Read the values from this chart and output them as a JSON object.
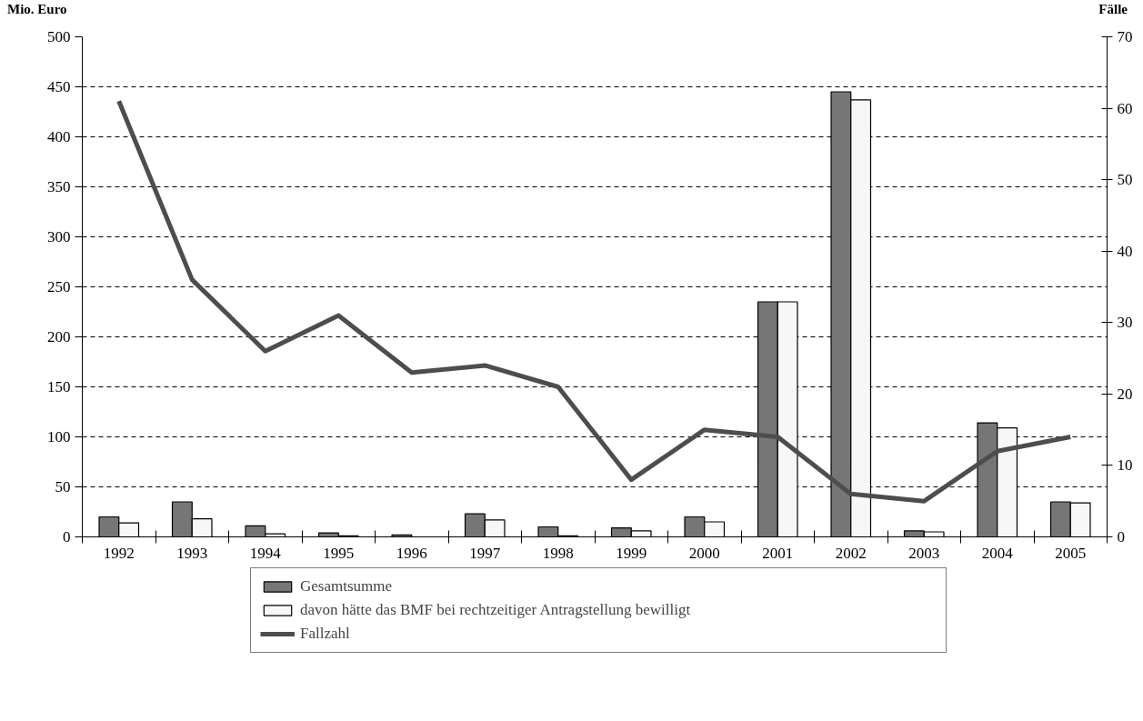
{
  "chart_data": {
    "type": "bar",
    "ylabel": "Mio. Euro",
    "y2label": "Fälle",
    "categories": [
      "1992",
      "1993",
      "1994",
      "1995",
      "1996",
      "1997",
      "1998",
      "1999",
      "2000",
      "2001",
      "2002",
      "2003",
      "2004",
      "2005"
    ],
    "series": [
      {
        "name": "Gesamtsumme",
        "color": "#767676",
        "values": [
          20,
          35,
          11,
          4,
          2,
          23,
          10,
          9,
          20,
          235,
          445,
          6,
          114,
          35
        ]
      },
      {
        "name": "davon hätte das BMF bei rechtzeitiger Antragstellung bewilligt",
        "color": "#f7f7f7",
        "values": [
          14,
          18,
          3,
          1,
          null,
          17,
          1,
          6,
          15,
          235,
          437,
          5,
          109,
          34
        ]
      },
      {
        "name": "Fallzahl",
        "type": "line",
        "axis": "y2",
        "color": "#4d4d4d",
        "values": [
          61,
          36,
          26,
          31,
          23,
          24,
          21,
          8,
          15,
          14,
          6,
          5,
          12,
          14
        ]
      }
    ],
    "ylim": [
      0,
      500
    ],
    "yticks": [
      0,
      50,
      100,
      150,
      200,
      250,
      300,
      350,
      400,
      450,
      500
    ],
    "y2lim": [
      0,
      70
    ],
    "y2ticks": [
      0,
      10,
      20,
      30,
      40,
      50,
      60,
      70
    ],
    "grid": "y",
    "legend": "bottom"
  }
}
